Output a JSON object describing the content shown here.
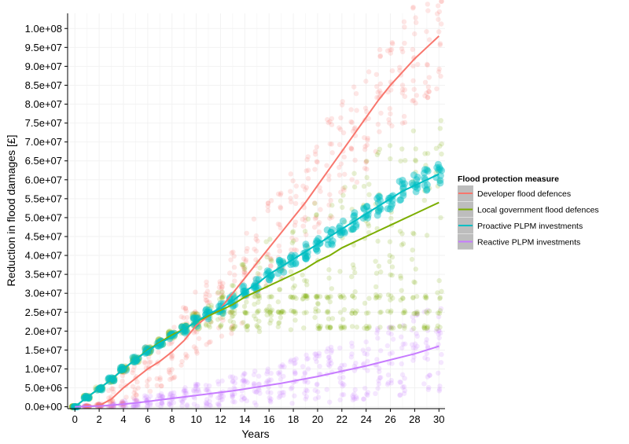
{
  "chart_data": {
    "type": "scatter",
    "title": "",
    "xlabel": "Years",
    "ylabel": "Reduction in flood damages [£]",
    "xlim": [
      -0.6,
      30.5
    ],
    "ylim": [
      -500000,
      104000000
    ],
    "x_ticks": [
      0,
      2,
      4,
      6,
      8,
      10,
      12,
      14,
      16,
      18,
      20,
      22,
      24,
      26,
      28,
      30
    ],
    "x_tick_labels": [
      "0",
      "2",
      "4",
      "6",
      "8",
      "10",
      "12",
      "14",
      "16",
      "18",
      "20",
      "22",
      "24",
      "26",
      "28",
      "30"
    ],
    "y_ticks": [
      0,
      5000000,
      10000000,
      15000000,
      20000000,
      25000000,
      30000000,
      35000000,
      40000000,
      45000000,
      50000000,
      55000000,
      60000000,
      65000000,
      70000000,
      75000000,
      80000000,
      85000000,
      90000000,
      95000000,
      100000000
    ],
    "y_tick_labels": [
      "0.0e+00",
      "5.0e+06",
      "1.0e+07",
      "1.5e+07",
      "2.0e+07",
      "2.5e+07",
      "3.0e+07",
      "3.5e+07",
      "4.0e+07",
      "4.5e+07",
      "5.0e+07",
      "5.5e+07",
      "6.0e+07",
      "6.5e+07",
      "7.0e+07",
      "7.5e+07",
      "8.0e+07",
      "8.5e+07",
      "9.0e+07",
      "9.5e+07",
      "1.0e+08"
    ],
    "grid": true,
    "legend": {
      "title": "Flood protection measure",
      "placement": "right"
    },
    "series": [
      {
        "name": "Developer flood defences",
        "color": "#F8766D",
        "trend_x": [
          0,
          1,
          2,
          3,
          4,
          5,
          6,
          7,
          8,
          9,
          10,
          11,
          12,
          13,
          14,
          15,
          16,
          17,
          18,
          19,
          20,
          21,
          22,
          23,
          24,
          25,
          26,
          27,
          28,
          29,
          30
        ],
        "trend_y": [
          0,
          100000,
          300000,
          2000000,
          5000000,
          7500000,
          10000000,
          12000000,
          14500000,
          17500000,
          21500000,
          24000000,
          26000000,
          30000000,
          34000000,
          38000000,
          42000000,
          46000000,
          50000000,
          54000000,
          58500000,
          63000000,
          67500000,
          72000000,
          76500000,
          81000000,
          85000000,
          88500000,
          92000000,
          95000000,
          98000000
        ],
        "scatter_spread_y": [
          0,
          300000,
          500000,
          3000000,
          5000000,
          6000000,
          7000000,
          7000000,
          7500000,
          9000000,
          9000000,
          9000000,
          10000000,
          11000000,
          12000000,
          12000000,
          13000000,
          13000000,
          13000000,
          13000000,
          14000000,
          14000000,
          14000000,
          14000000,
          14000000,
          14000000,
          14000000,
          14000000,
          14000000,
          14000000,
          14000000
        ]
      },
      {
        "name": "Local government flood defences",
        "color": "#7CAE00",
        "trend_x": [
          0,
          1,
          2,
          3,
          4,
          5,
          6,
          7,
          8,
          9,
          10,
          11,
          12,
          13,
          14,
          15,
          16,
          17,
          18,
          19,
          20,
          21,
          22,
          23,
          24,
          25,
          26,
          27,
          28,
          29,
          30
        ],
        "trend_y": [
          0,
          2500000,
          4800000,
          7200000,
          10000000,
          12500000,
          15000000,
          17000000,
          19000000,
          20500000,
          22500000,
          24000000,
          25500000,
          27000000,
          29000000,
          30500000,
          32000000,
          33500000,
          35000000,
          36500000,
          38500000,
          40000000,
          42000000,
          43500000,
          45000000,
          46500000,
          48000000,
          49500000,
          51000000,
          52500000,
          54000000
        ],
        "scatter_spread_y": [
          0,
          300000,
          300000,
          500000,
          600000,
          600000,
          700000,
          800000,
          800000,
          1000000,
          2000000,
          3000000,
          5000000,
          7000000,
          9000000,
          11000000,
          13000000,
          14000000,
          15000000,
          16000000,
          17000000,
          18000000,
          19000000,
          20000000,
          21000000,
          22000000,
          22000000,
          23000000,
          23000000,
          24000000,
          24000000
        ]
      },
      {
        "name": "Proactive PLPM investments",
        "color": "#00BFC4",
        "trend_x": [
          0,
          1,
          2,
          3,
          4,
          5,
          6,
          7,
          8,
          9,
          10,
          11,
          12,
          13,
          14,
          15,
          16,
          17,
          18,
          19,
          20,
          21,
          22,
          23,
          24,
          25,
          26,
          27,
          28,
          29,
          30
        ],
        "trend_y": [
          0,
          2500000,
          4800000,
          7200000,
          10000000,
          12500000,
          14800000,
          16800000,
          18500000,
          20500000,
          22500000,
          24500000,
          26000000,
          28000000,
          30500000,
          32500000,
          35000000,
          37000000,
          39000000,
          41000000,
          43000000,
          45000000,
          47000000,
          49000000,
          51000000,
          53000000,
          55000000,
          57000000,
          58500000,
          60000000,
          61500000
        ],
        "scatter_spread_y": [
          0,
          300000,
          400000,
          500000,
          600000,
          700000,
          800000,
          800000,
          900000,
          1000000,
          1200000,
          1300000,
          1400000,
          1500000,
          1600000,
          1700000,
          1800000,
          1900000,
          2000000,
          2100000,
          2200000,
          2300000,
          2400000,
          2500000,
          2600000,
          2700000,
          2800000,
          2900000,
          3000000,
          3100000,
          3200000
        ]
      },
      {
        "name": "Reactive PLPM investments",
        "color": "#C77CFF",
        "trend_x": [
          0,
          1,
          2,
          3,
          4,
          5,
          6,
          7,
          8,
          9,
          10,
          11,
          12,
          13,
          14,
          15,
          16,
          17,
          18,
          19,
          20,
          21,
          22,
          23,
          24,
          25,
          26,
          27,
          28,
          29,
          30
        ],
        "trend_y": [
          0,
          100000,
          200000,
          400000,
          700000,
          1000000,
          1400000,
          1800000,
          2200000,
          2600000,
          3000000,
          3400000,
          3800000,
          4200000,
          4700000,
          5200000,
          5700000,
          6200000,
          6800000,
          7400000,
          8000000,
          8700000,
          9400000,
          10100000,
          10800000,
          11600000,
          12400000,
          13200000,
          14000000,
          15000000,
          16000000
        ],
        "scatter_spread_y": [
          0,
          300000,
          500000,
          800000,
          1000000,
          1300000,
          1600000,
          2000000,
          2300000,
          2600000,
          3000000,
          3300000,
          3600000,
          4000000,
          4400000,
          4800000,
          5200000,
          5600000,
          6000000,
          6500000,
          7000000,
          7500000,
          8000000,
          8500000,
          9000000,
          9500000,
          10000000,
          10500000,
          11000000,
          11500000,
          12000000
        ]
      }
    ]
  }
}
